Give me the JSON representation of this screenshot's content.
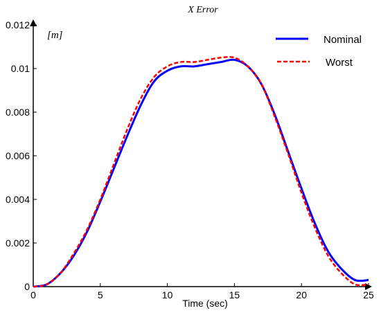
{
  "chart_data": {
    "type": "line",
    "title": "X Error",
    "unit_label": "[m]",
    "xlabel": "Time (sec)",
    "ylabel": "",
    "xlim": [
      0,
      25
    ],
    "ylim": [
      0,
      0.012
    ],
    "x_ticks": [
      0,
      5,
      10,
      15,
      20,
      25
    ],
    "y_ticks": [
      0,
      0.002,
      0.004,
      0.006,
      0.008,
      0.01,
      0.012
    ],
    "x_tick_labels": [
      "0",
      "5",
      "10",
      "15",
      "20",
      "25"
    ],
    "y_tick_labels": [
      "0",
      "0.002",
      "0.004",
      "0.006",
      "0.008",
      "0.01",
      "0.012"
    ],
    "grid": false,
    "legend_position": "top-right",
    "series": [
      {
        "name": "Nominal",
        "color": "#0000ff",
        "style": "solid",
        "x": [
          0,
          1,
          2,
          3,
          4,
          5,
          6,
          7,
          8,
          9,
          10,
          11,
          12,
          13,
          14,
          15,
          16,
          17,
          18,
          19,
          20,
          21,
          22,
          23,
          24,
          25
        ],
        "y": [
          0,
          0.0001,
          0.0006,
          0.0014,
          0.0025,
          0.0039,
          0.0054,
          0.0069,
          0.0083,
          0.0094,
          0.0099,
          0.0101,
          0.0101,
          0.0102,
          0.0103,
          0.0104,
          0.0101,
          0.0093,
          0.0079,
          0.0062,
          0.0045,
          0.0029,
          0.0016,
          0.0008,
          0.0003,
          0.0003
        ]
      },
      {
        "name": "Worst",
        "color": "#ff0000",
        "style": "dashed",
        "x": [
          0,
          1,
          2,
          3,
          4,
          5,
          6,
          7,
          8,
          9,
          10,
          11,
          12,
          13,
          14,
          15,
          16,
          17,
          18,
          19,
          20,
          21,
          22,
          23,
          24,
          25
        ],
        "y": [
          0,
          0.0001,
          0.0006,
          0.0015,
          0.0026,
          0.004,
          0.0056,
          0.0072,
          0.0086,
          0.0096,
          0.0101,
          0.0103,
          0.0103,
          0.0104,
          0.0105,
          0.0105,
          0.0101,
          0.0093,
          0.0078,
          0.0061,
          0.0043,
          0.0027,
          0.0014,
          0.0006,
          0.0001,
          0.0001
        ]
      }
    ]
  }
}
